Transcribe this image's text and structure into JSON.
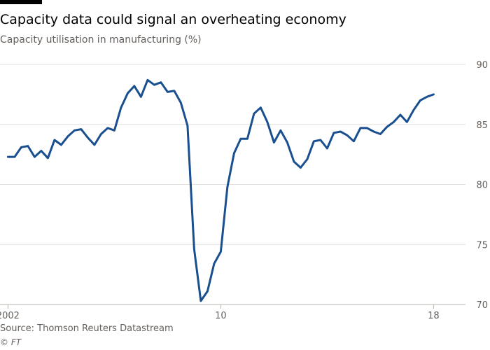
{
  "header": {
    "title": "Capacity data could signal an overheating economy",
    "subtitle": "Capacity utilisation in manufacturing (%)"
  },
  "footer": {
    "source": "Source: Thomson Reuters Datastream",
    "credit": "© FT"
  },
  "colors": {
    "line": "#1a4f8f",
    "grid": "#e3dfdc",
    "axis": "#66605c",
    "accent_bar": "#000000"
  },
  "chart_data": {
    "type": "line",
    "title": "Capacity data could signal an overheating economy",
    "subtitle": "Capacity utilisation in manufacturing (%)",
    "xlabel": "",
    "ylabel": "",
    "xlim": [
      2001.7,
      2019.2
    ],
    "ylim": [
      70,
      90
    ],
    "y_ticks": [
      70,
      75,
      80,
      85,
      90
    ],
    "y_axis_side": "right",
    "x_ticks": [
      {
        "value": 2002,
        "label": "2002"
      },
      {
        "value": 2010,
        "label": "10"
      },
      {
        "value": 2018,
        "label": "18"
      }
    ],
    "grid": true,
    "series": [
      {
        "x": [
          2002.0,
          2002.25,
          2002.5,
          2002.75,
          2003.0,
          2003.25,
          2003.5,
          2003.75,
          2004.0,
          2004.25,
          2004.5,
          2004.75,
          2005.0,
          2005.25,
          2005.5,
          2005.75,
          2006.0,
          2006.25,
          2006.5,
          2006.75,
          2007.0,
          2007.25,
          2007.5,
          2007.75,
          2008.0,
          2008.25,
          2008.5,
          2008.75,
          2009.0,
          2009.25,
          2009.5,
          2009.75,
          2010.0,
          2010.25,
          2010.5,
          2010.75,
          2011.0,
          2011.25,
          2011.5,
          2011.75,
          2012.0,
          2012.25,
          2012.5,
          2012.75,
          2013.0,
          2013.25,
          2013.5,
          2013.75,
          2014.0,
          2014.25,
          2014.5,
          2014.75,
          2015.0,
          2015.25,
          2015.5,
          2015.75,
          2016.0,
          2016.25,
          2016.5,
          2016.75,
          2017.0,
          2017.25,
          2017.5,
          2017.75,
          2018.0
        ],
        "values": [
          82.3,
          82.3,
          83.1,
          83.2,
          82.3,
          82.8,
          82.2,
          83.7,
          83.3,
          84.0,
          84.5,
          84.6,
          83.9,
          83.3,
          84.2,
          84.7,
          84.5,
          86.4,
          87.6,
          88.2,
          87.3,
          88.7,
          88.3,
          88.5,
          87.7,
          87.8,
          86.8,
          84.9,
          74.6,
          70.3,
          71.1,
          73.4,
          74.4,
          79.8,
          82.6,
          83.8,
          83.8,
          85.9,
          86.4,
          85.2,
          83.5,
          84.5,
          83.5,
          81.9,
          81.4,
          82.1,
          83.6,
          83.7,
          83.0,
          84.3,
          84.4,
          84.1,
          83.6,
          84.7,
          84.7,
          84.4,
          84.2,
          84.8,
          85.2,
          85.8,
          85.2,
          86.2,
          87.0,
          87.3,
          87.5
        ]
      }
    ]
  }
}
